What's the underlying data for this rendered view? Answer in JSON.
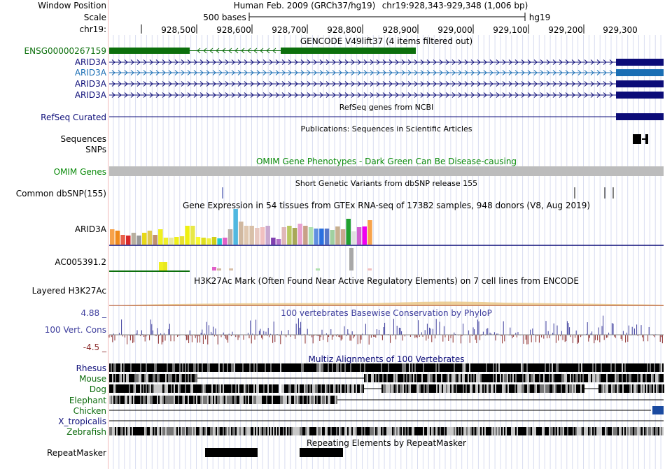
{
  "colors": {
    "gencode_green": "#0c6f0c",
    "arid3a_navy": "#0c0c78",
    "arid3a_light": "#1a6eb4",
    "refseq_navy": "#0c0c78",
    "omim_green": "#0a8a0a",
    "cons_blue": "#3c3c9c",
    "cons_red": "#8c2c2c",
    "grid": "#d8dcf0"
  },
  "header": {
    "window_label": "Window Position",
    "scale_label": "Scale",
    "chrom_label": "chr19:",
    "assembly": "Human Feb. 2009 (GRCh37/hg19)",
    "position": "chr19:928,343-929,348 (1,006 bp)",
    "scale_text": "500 bases",
    "scale_assembly": "hg19",
    "ticks": [
      "928,500",
      "928,600",
      "928,700",
      "928,800",
      "928,900",
      "929,000",
      "929,100",
      "929,200",
      "929,300"
    ]
  },
  "tracks": {
    "gencode": {
      "title": "GENCODE V49lift37 (4 items filtered out)",
      "items": [
        "ENSG00000267159",
        "ARID3A",
        "ARID3A",
        "ARID3A",
        "ARID3A"
      ]
    },
    "refseq": {
      "label": "RefSeq Curated",
      "title": "RefSeq genes from NCBI"
    },
    "publications": {
      "title": "Publications: Sequences in Scientific Articles",
      "label1": "Sequences",
      "label2": "SNPs"
    },
    "omim": {
      "title": "OMIM Gene Phenotypes - Dark Green Can Be Disease-causing",
      "label": "OMIM Genes"
    },
    "dbsnp": {
      "title": "Short Genetic Variants from dbSNP release 155",
      "label": "Common dbSNP(155)"
    },
    "gtex": {
      "title": "Gene Expression in 54 tissues from GTEx RNA-seq of 17382 samples, 948 donors (V8, Aug 2019)",
      "gene1": "ARID3A",
      "gene2": "AC005391.2"
    },
    "h3k27ac": {
      "title": "H3K27Ac Mark (Often Found Near Active Regulatory Elements) on 7 cell lines from ENCODE",
      "label": "Layered H3K27Ac"
    },
    "phylop": {
      "title": "100 vertebrates Basewise Conservation by PhyloP",
      "label": "100 Vert. Cons",
      "max": "4.88 _",
      "min": "-4.5 _"
    },
    "multiz": {
      "title": "Multiz Alignments of 100 Vertebrates",
      "species": [
        "Rhesus",
        "Mouse",
        "Dog",
        "Elephant",
        "Chicken",
        "X_tropicalis",
        "Zebrafish"
      ]
    },
    "repeatmasker": {
      "title": "Repeating Elements by RepeatMasker",
      "label": "RepeatMasker"
    }
  }
}
